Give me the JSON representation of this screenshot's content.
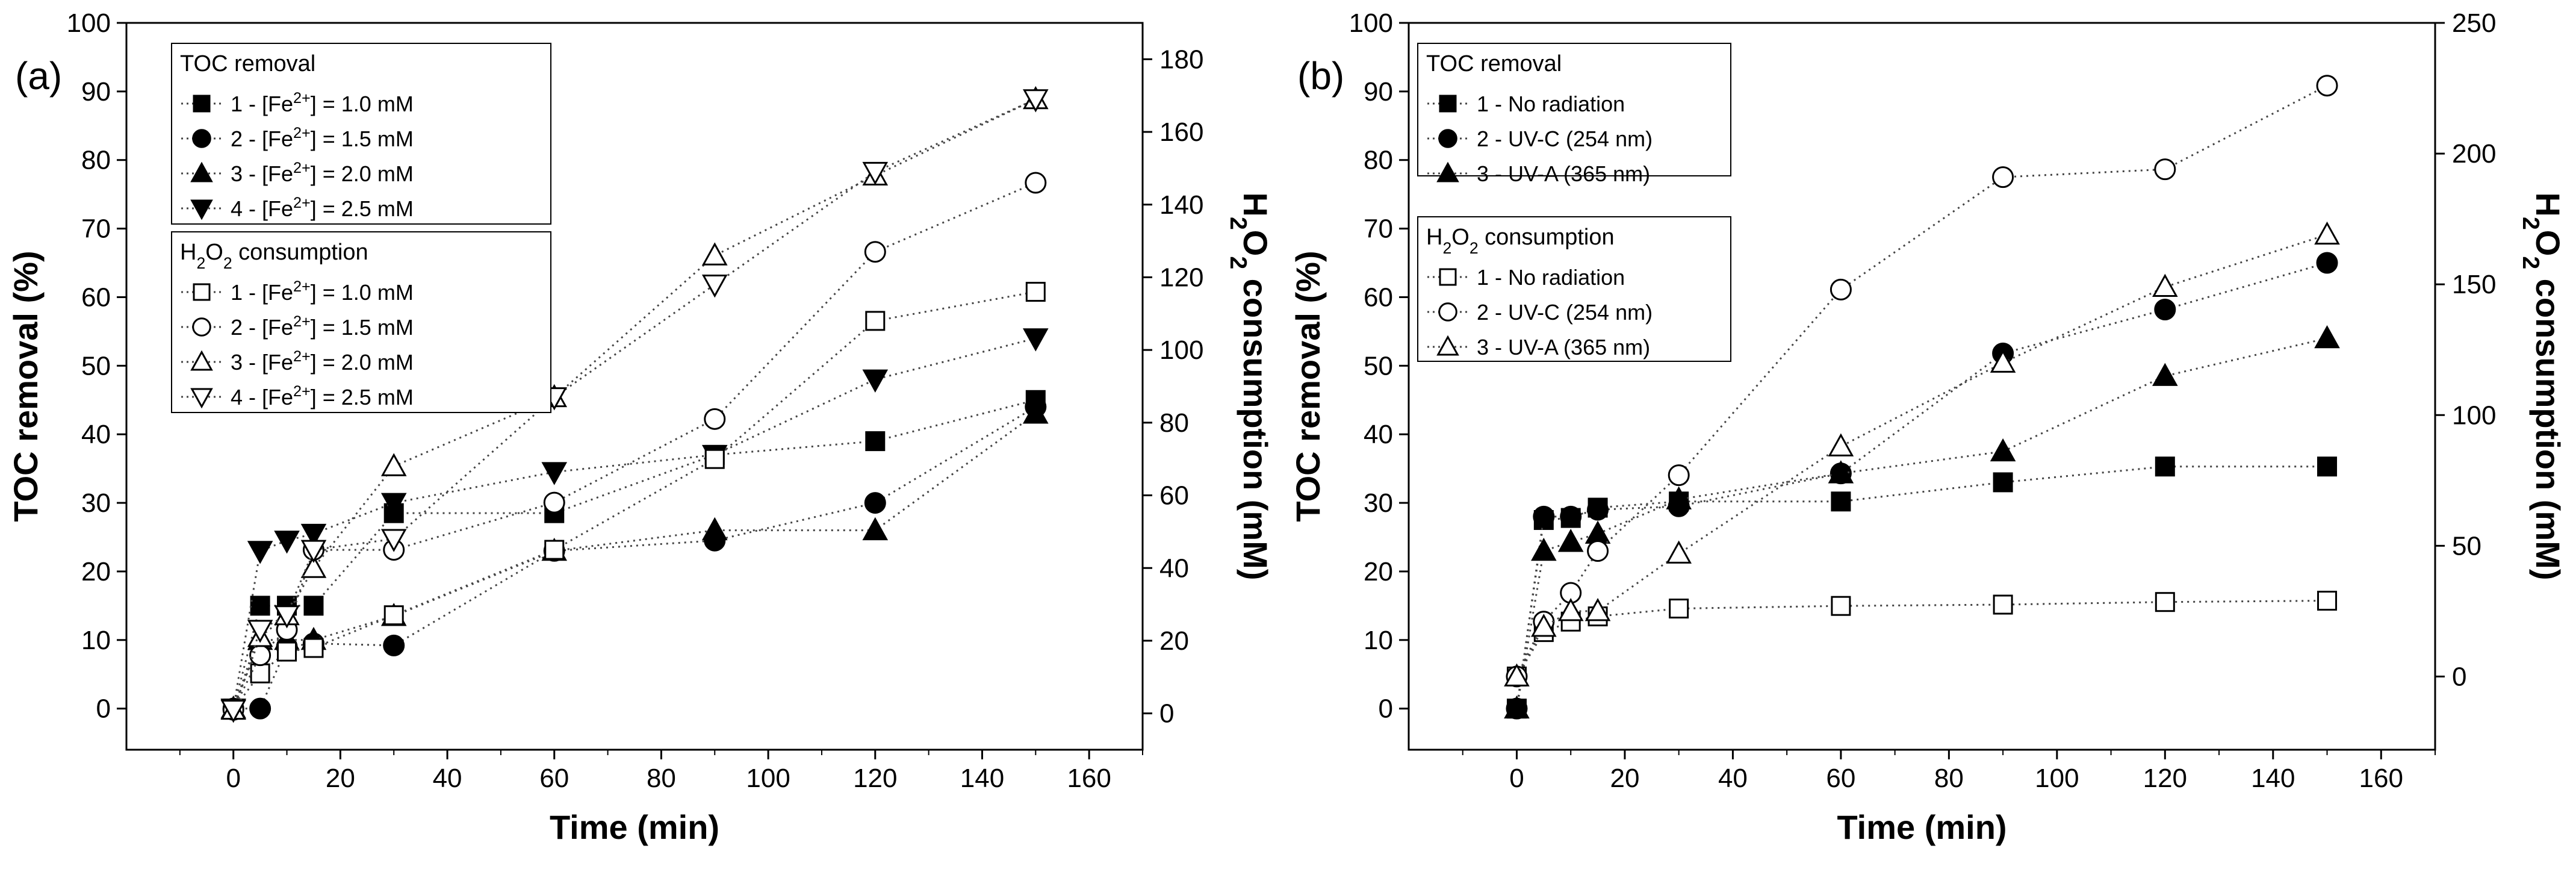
{
  "chart_data": [
    {
      "type": "scatter",
      "panel_label": "(a)",
      "xlabel": "Time (min)",
      "ylabel": "TOC removal (%)",
      "y2label_parts": [
        "H",
        "2",
        "O",
        "2",
        " consumption (mM)"
      ],
      "xlim": [
        -20,
        170
      ],
      "ylim": [
        -6,
        100
      ],
      "y2lim": [
        -10,
        190
      ],
      "xticks": [
        0,
        20,
        40,
        60,
        80,
        100,
        120,
        140,
        160
      ],
      "yticks": [
        0,
        10,
        20,
        30,
        40,
        50,
        60,
        70,
        80,
        90,
        100
      ],
      "y2ticks": [
        0,
        20,
        40,
        60,
        80,
        100,
        120,
        140,
        160,
        180
      ],
      "grid": false,
      "legend_placement": "top-left",
      "legends": [
        {
          "title": "TOC removal",
          "entries": [
            0,
            1,
            2,
            3
          ]
        },
        {
          "title_parts": [
            "H",
            "2",
            "O",
            "2",
            " consumption"
          ],
          "entries": [
            4,
            5,
            6,
            7
          ]
        }
      ],
      "series": [
        {
          "name": "1 - [Fe2+] = 1.0 mM",
          "name_parts": [
            "1 - [Fe",
            "2+",
            "] = 1.0 mM"
          ],
          "axis": "left",
          "marker": "square",
          "filled": true,
          "x": [
            0,
            5,
            10,
            15,
            30,
            60,
            90,
            120,
            150
          ],
          "y": [
            0,
            15,
            15,
            15,
            28.5,
            28.5,
            37,
            39,
            45
          ]
        },
        {
          "name": "2 - [Fe2+] = 1.5 mM",
          "name_parts": [
            "2 - [Fe",
            "2+",
            "] = 1.5 mM"
          ],
          "axis": "left",
          "marker": "circle",
          "filled": true,
          "x": [
            0,
            5,
            10,
            15,
            30,
            60,
            90,
            120,
            150
          ],
          "y": [
            0,
            0,
            9,
            9.5,
            9.2,
            23,
            24.5,
            30,
            44
          ]
        },
        {
          "name": "3 - [Fe2+] = 2.0 mM",
          "name_parts": [
            "3 - [Fe",
            "2+",
            "] = 2.0 mM"
          ],
          "axis": "left",
          "marker": "triangle-up",
          "filled": true,
          "x": [
            0,
            5,
            10,
            15,
            30,
            60,
            90,
            120,
            150
          ],
          "y": [
            0,
            10,
            10,
            10,
            13.5,
            23,
            26,
            26,
            43
          ]
        },
        {
          "name": "4 - [Fe2+] = 2.5 mM",
          "name_parts": [
            "4 - [Fe",
            "2+",
            "] = 2.5 mM"
          ],
          "axis": "left",
          "marker": "triangle-down",
          "filled": true,
          "x": [
            0,
            5,
            10,
            15,
            30,
            60,
            90,
            120,
            150
          ],
          "y": [
            0,
            23,
            24.5,
            25.5,
            30,
            34.5,
            37,
            48,
            54
          ]
        },
        {
          "name": "1 - [Fe2+] = 1.0 mM",
          "name_parts": [
            "1 - [Fe",
            "2+",
            "] = 1.0 mM"
          ],
          "axis": "right",
          "marker": "square",
          "filled": false,
          "x": [
            0,
            5,
            10,
            15,
            30,
            60,
            90,
            120,
            150
          ],
          "y": [
            1,
            11,
            17,
            18,
            27,
            45,
            70,
            108,
            116
          ]
        },
        {
          "name": "2 - [Fe2+] = 1.5 mM",
          "name_parts": [
            "2 - [Fe",
            "2+",
            "] = 1.5 mM"
          ],
          "axis": "right",
          "marker": "circle",
          "filled": false,
          "x": [
            0,
            5,
            10,
            15,
            30,
            60,
            90,
            120,
            150
          ],
          "y": [
            1,
            16,
            23,
            45,
            45,
            58,
            81,
            127,
            146
          ]
        },
        {
          "name": "3 - [Fe2+] = 2.0 mM",
          "name_parts": [
            "3 - [Fe",
            "2+",
            "] = 2.0 mM"
          ],
          "axis": "right",
          "marker": "triangle-up",
          "filled": false,
          "x": [
            0,
            5,
            10,
            15,
            30,
            60,
            90,
            120,
            150
          ],
          "y": [
            1,
            21,
            27,
            40,
            68,
            87,
            126,
            148,
            169
          ]
        },
        {
          "name": "4 - [Fe2+] = 2.5 mM",
          "name_parts": [
            "4 - [Fe",
            "2+",
            "] = 2.5 mM"
          ],
          "axis": "right",
          "marker": "triangle-down",
          "filled": false,
          "x": [
            0,
            5,
            10,
            15,
            30,
            60,
            90,
            120,
            150
          ],
          "y": [
            1,
            23,
            27,
            45,
            48,
            87,
            118,
            149,
            169
          ]
        }
      ]
    },
    {
      "type": "scatter",
      "panel_label": "(b)",
      "xlabel": "Time (min)",
      "ylabel": "TOC removal (%)",
      "y2label_parts": [
        "H",
        "2",
        "O",
        "2",
        " consumption (mM)"
      ],
      "xlim": [
        -20,
        170
      ],
      "ylim": [
        -6,
        100
      ],
      "y2lim": [
        -28,
        250
      ],
      "xticks": [
        0,
        20,
        40,
        60,
        80,
        100,
        120,
        140,
        160
      ],
      "yticks": [
        0,
        10,
        20,
        30,
        40,
        50,
        60,
        70,
        80,
        90,
        100
      ],
      "y2ticks": [
        0,
        50,
        100,
        150,
        200,
        250
      ],
      "grid": false,
      "legend_placement": "top-left",
      "legends": [
        {
          "title": "TOC removal",
          "entries": [
            0,
            1,
            2
          ]
        },
        {
          "title_parts": [
            "H",
            "2",
            "O",
            "2",
            " consumption"
          ],
          "entries": [
            3,
            4,
            5
          ]
        }
      ],
      "series": [
        {
          "name": "1 - No radiation",
          "axis": "left",
          "marker": "square",
          "filled": true,
          "x": [
            0,
            5,
            10,
            15,
            30,
            60,
            90,
            120,
            150
          ],
          "y": [
            0,
            27.5,
            27.8,
            29.3,
            30.2,
            30.2,
            33,
            35.3,
            35.3
          ]
        },
        {
          "name": "2 - UV-C (254 nm)",
          "axis": "left",
          "marker": "circle",
          "filled": true,
          "x": [
            0,
            5,
            10,
            15,
            30,
            60,
            90,
            120,
            150
          ],
          "y": [
            0,
            28,
            28,
            29,
            29.5,
            34.3,
            51.8,
            58.2,
            65
          ]
        },
        {
          "name": "3 - UV-A (365 nm)",
          "axis": "left",
          "marker": "triangle-up",
          "filled": true,
          "x": [
            0,
            5,
            10,
            15,
            30,
            60,
            90,
            120,
            150
          ],
          "y": [
            0,
            23,
            24.3,
            25.5,
            30.5,
            34.3,
            37.5,
            48.5,
            54
          ]
        },
        {
          "name": "1 - No radiation",
          "axis": "right",
          "marker": "square",
          "filled": false,
          "x": [
            0,
            5,
            10,
            15,
            30,
            60,
            90,
            120,
            150
          ],
          "y": [
            0,
            17,
            21,
            23,
            26,
            27,
            27.5,
            28.5,
            29
          ]
        },
        {
          "name": "2 - UV-C (254 nm)",
          "axis": "right",
          "marker": "circle",
          "filled": false,
          "x": [
            0,
            5,
            10,
            15,
            30,
            60,
            90,
            120,
            150
          ],
          "y": [
            0,
            21,
            32,
            48,
            77,
            148,
            191,
            194,
            226
          ]
        },
        {
          "name": "3 - UV-A (365 nm)",
          "axis": "right",
          "marker": "triangle-up",
          "filled": false,
          "x": [
            0,
            5,
            10,
            15,
            30,
            60,
            90,
            120,
            150
          ],
          "y": [
            0,
            19,
            25,
            25,
            47,
            88,
            120,
            149,
            169
          ]
        }
      ]
    }
  ]
}
